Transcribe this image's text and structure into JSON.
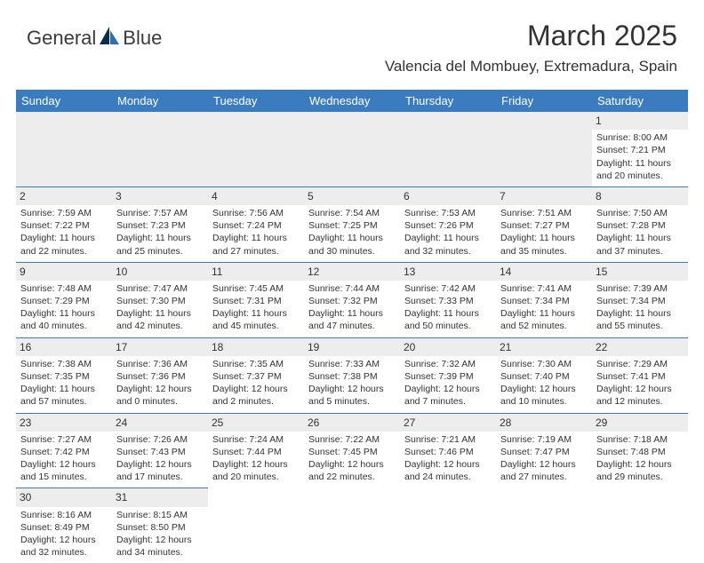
{
  "brand": {
    "name_part1": "General",
    "name_part2": "Blue"
  },
  "logo_colors": {
    "dark": "#0b2b4a",
    "light": "#2f6fb0"
  },
  "title": "March 2025",
  "location": "Valencia del Mombuey, Extremadura, Spain",
  "header_bg": "#3b7bbf",
  "header_fg": "#ffffff",
  "daynum_bg": "#ededed",
  "border_color": "#3b7bbf",
  "text_color": "#333333",
  "days": [
    "Sunday",
    "Monday",
    "Tuesday",
    "Wednesday",
    "Thursday",
    "Friday",
    "Saturday"
  ],
  "weeks": [
    [
      null,
      null,
      null,
      null,
      null,
      null,
      {
        "n": "1",
        "sr": "8:00 AM",
        "ss": "7:21 PM",
        "dl": "11 hours and 20 minutes."
      }
    ],
    [
      {
        "n": "2",
        "sr": "7:59 AM",
        "ss": "7:22 PM",
        "dl": "11 hours and 22 minutes."
      },
      {
        "n": "3",
        "sr": "7:57 AM",
        "ss": "7:23 PM",
        "dl": "11 hours and 25 minutes."
      },
      {
        "n": "4",
        "sr": "7:56 AM",
        "ss": "7:24 PM",
        "dl": "11 hours and 27 minutes."
      },
      {
        "n": "5",
        "sr": "7:54 AM",
        "ss": "7:25 PM",
        "dl": "11 hours and 30 minutes."
      },
      {
        "n": "6",
        "sr": "7:53 AM",
        "ss": "7:26 PM",
        "dl": "11 hours and 32 minutes."
      },
      {
        "n": "7",
        "sr": "7:51 AM",
        "ss": "7:27 PM",
        "dl": "11 hours and 35 minutes."
      },
      {
        "n": "8",
        "sr": "7:50 AM",
        "ss": "7:28 PM",
        "dl": "11 hours and 37 minutes."
      }
    ],
    [
      {
        "n": "9",
        "sr": "7:48 AM",
        "ss": "7:29 PM",
        "dl": "11 hours and 40 minutes."
      },
      {
        "n": "10",
        "sr": "7:47 AM",
        "ss": "7:30 PM",
        "dl": "11 hours and 42 minutes."
      },
      {
        "n": "11",
        "sr": "7:45 AM",
        "ss": "7:31 PM",
        "dl": "11 hours and 45 minutes."
      },
      {
        "n": "12",
        "sr": "7:44 AM",
        "ss": "7:32 PM",
        "dl": "11 hours and 47 minutes."
      },
      {
        "n": "13",
        "sr": "7:42 AM",
        "ss": "7:33 PM",
        "dl": "11 hours and 50 minutes."
      },
      {
        "n": "14",
        "sr": "7:41 AM",
        "ss": "7:34 PM",
        "dl": "11 hours and 52 minutes."
      },
      {
        "n": "15",
        "sr": "7:39 AM",
        "ss": "7:34 PM",
        "dl": "11 hours and 55 minutes."
      }
    ],
    [
      {
        "n": "16",
        "sr": "7:38 AM",
        "ss": "7:35 PM",
        "dl": "11 hours and 57 minutes."
      },
      {
        "n": "17",
        "sr": "7:36 AM",
        "ss": "7:36 PM",
        "dl": "12 hours and 0 minutes."
      },
      {
        "n": "18",
        "sr": "7:35 AM",
        "ss": "7:37 PM",
        "dl": "12 hours and 2 minutes."
      },
      {
        "n": "19",
        "sr": "7:33 AM",
        "ss": "7:38 PM",
        "dl": "12 hours and 5 minutes."
      },
      {
        "n": "20",
        "sr": "7:32 AM",
        "ss": "7:39 PM",
        "dl": "12 hours and 7 minutes."
      },
      {
        "n": "21",
        "sr": "7:30 AM",
        "ss": "7:40 PM",
        "dl": "12 hours and 10 minutes."
      },
      {
        "n": "22",
        "sr": "7:29 AM",
        "ss": "7:41 PM",
        "dl": "12 hours and 12 minutes."
      }
    ],
    [
      {
        "n": "23",
        "sr": "7:27 AM",
        "ss": "7:42 PM",
        "dl": "12 hours and 15 minutes."
      },
      {
        "n": "24",
        "sr": "7:26 AM",
        "ss": "7:43 PM",
        "dl": "12 hours and 17 minutes."
      },
      {
        "n": "25",
        "sr": "7:24 AM",
        "ss": "7:44 PM",
        "dl": "12 hours and 20 minutes."
      },
      {
        "n": "26",
        "sr": "7:22 AM",
        "ss": "7:45 PM",
        "dl": "12 hours and 22 minutes."
      },
      {
        "n": "27",
        "sr": "7:21 AM",
        "ss": "7:46 PM",
        "dl": "12 hours and 24 minutes."
      },
      {
        "n": "28",
        "sr": "7:19 AM",
        "ss": "7:47 PM",
        "dl": "12 hours and 27 minutes."
      },
      {
        "n": "29",
        "sr": "7:18 AM",
        "ss": "7:48 PM",
        "dl": "12 hours and 29 minutes."
      }
    ],
    [
      {
        "n": "30",
        "sr": "8:16 AM",
        "ss": "8:49 PM",
        "dl": "12 hours and 32 minutes."
      },
      {
        "n": "31",
        "sr": "8:15 AM",
        "ss": "8:50 PM",
        "dl": "12 hours and 34 minutes."
      },
      null,
      null,
      null,
      null,
      null
    ]
  ],
  "labels": {
    "sunrise": "Sunrise:",
    "sunset": "Sunset:",
    "daylight": "Daylight:"
  }
}
